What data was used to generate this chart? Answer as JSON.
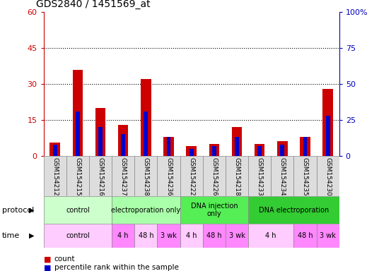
{
  "title": "GDS2840 / 1451569_at",
  "samples": [
    "GSM154212",
    "GSM154215",
    "GSM154216",
    "GSM154237",
    "GSM154238",
    "GSM154236",
    "GSM154222",
    "GSM154226",
    "GSM154218",
    "GSM154233",
    "GSM154234",
    "GSM154235",
    "GSM154230"
  ],
  "count": [
    5.5,
    36,
    20,
    13,
    32,
    8,
    4,
    5,
    12,
    5,
    6,
    8,
    28
  ],
  "percentile": [
    8,
    31,
    20,
    15,
    31,
    13,
    5,
    7,
    13,
    7,
    8,
    13,
    28
  ],
  "ylim_left": [
    0,
    60
  ],
  "ylim_right": [
    0,
    100
  ],
  "yticks_left": [
    0,
    15,
    30,
    45,
    60
  ],
  "yticks_right": [
    0,
    25,
    50,
    75,
    100
  ],
  "bar_color_red": "#cc0000",
  "bar_color_blue": "#0000cc",
  "tick_color_left": "#cc0000",
  "tick_color_right": "#0000bb",
  "protocol_info": [
    [
      0,
      3,
      "control",
      "#ccffcc"
    ],
    [
      3,
      6,
      "electroporation only",
      "#aaffaa"
    ],
    [
      6,
      9,
      "DNA injection\nonly",
      "#55ee55"
    ],
    [
      9,
      13,
      "DNA electroporation",
      "#33cc33"
    ]
  ],
  "time_info": [
    [
      0,
      3,
      "control",
      "#ffccff"
    ],
    [
      3,
      4,
      "4 h",
      "#ff88ff"
    ],
    [
      4,
      5,
      "48 h",
      "#ffccff"
    ],
    [
      5,
      6,
      "3 wk",
      "#ff88ff"
    ],
    [
      6,
      7,
      "4 h",
      "#ffccff"
    ],
    [
      7,
      8,
      "48 h",
      "#ff88ff"
    ],
    [
      8,
      9,
      "3 wk",
      "#ff88ff"
    ],
    [
      9,
      11,
      "4 h",
      "#ffccff"
    ],
    [
      11,
      12,
      "48 h",
      "#ff88ff"
    ],
    [
      12,
      13,
      "3 wk",
      "#ff88ff"
    ]
  ],
  "sample_bg": "#dddddd"
}
